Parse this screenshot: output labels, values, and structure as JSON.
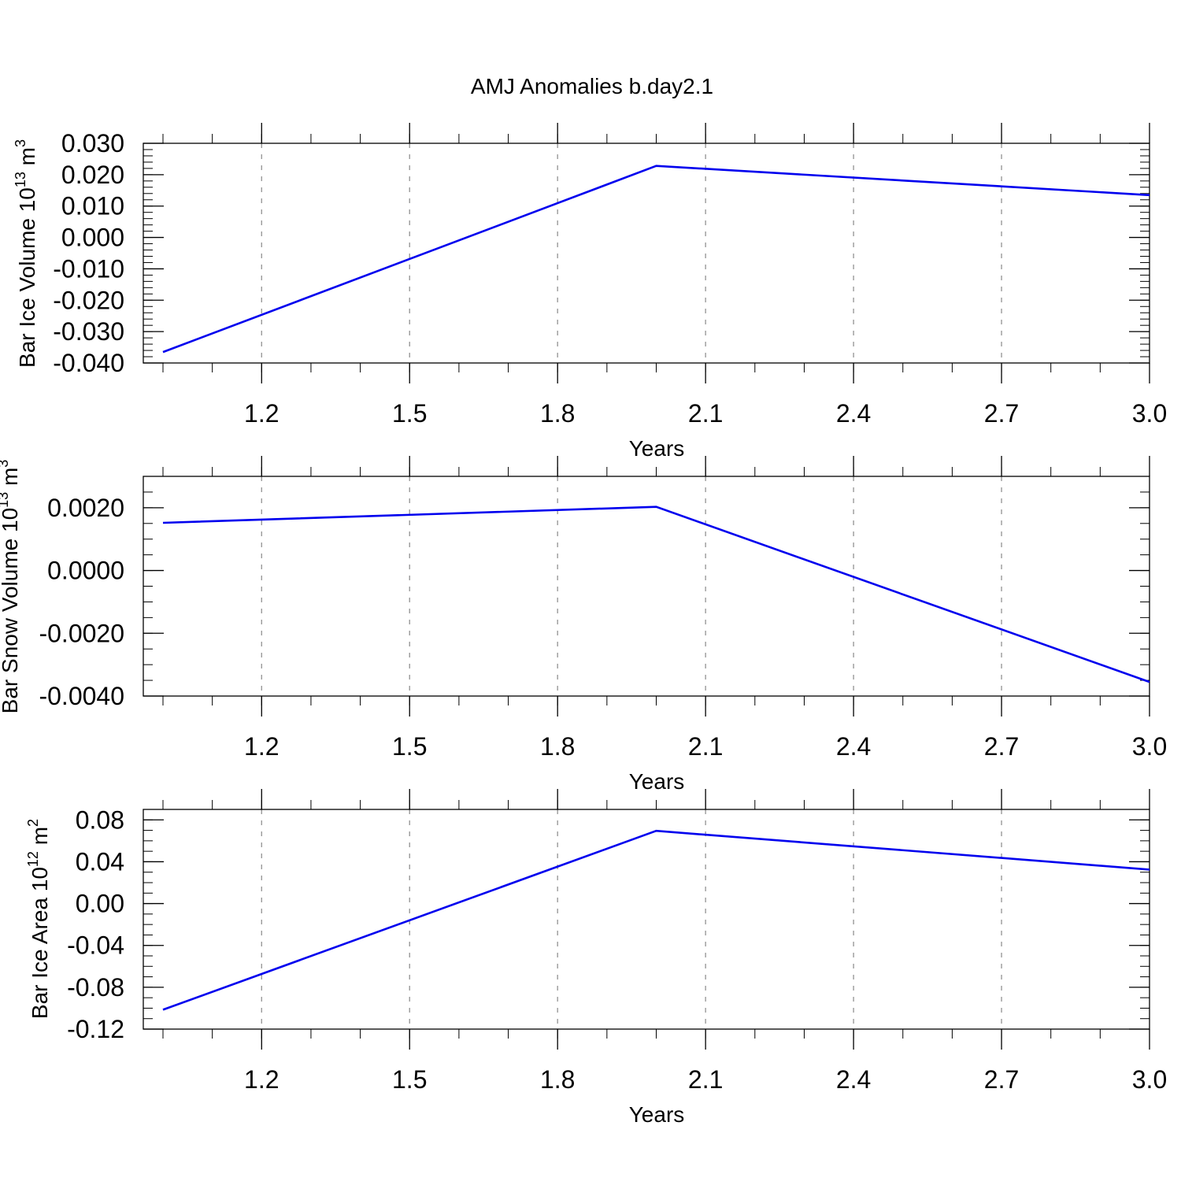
{
  "title": "AMJ Anomalies b.day2.1",
  "colors": {
    "line": "#0000ee",
    "grid": "#9a9a9a",
    "axis": "#000000"
  },
  "chart_data": [
    {
      "type": "line",
      "xlabel": "Years",
      "ylabel": {
        "text": "Bar Ice Volume 10",
        "sup": "13",
        "unit": " m",
        "unit_sup": "3"
      },
      "x": [
        1.0,
        2.0,
        3.0
      ],
      "y": [
        -0.0365,
        0.0228,
        0.0135
      ],
      "xlim": [
        1.0,
        3.0
      ],
      "ylim": [
        -0.04,
        0.03
      ],
      "xticks": [
        1.2,
        1.5,
        1.8,
        2.1,
        2.4,
        2.7,
        3.0
      ],
      "xtick_labels": [
        "1.2",
        "1.5",
        "1.8",
        "2.1",
        "2.4",
        "2.7",
        "3.0"
      ],
      "yticks": [
        0.03,
        0.02,
        0.01,
        0.0,
        -0.01,
        -0.02,
        -0.03,
        -0.04
      ],
      "ytick_labels": [
        "0.030",
        "0.020",
        "0.010",
        "0.000",
        "-0.010",
        "-0.020",
        "-0.030",
        "-0.040"
      ],
      "grid": "vertical dashed"
    },
    {
      "type": "line",
      "xlabel": "Years",
      "ylabel": {
        "text": "Bar Snow Volume 10",
        "sup": "13",
        "unit": " m",
        "unit_sup": "3"
      },
      "x": [
        1.0,
        2.0,
        3.0
      ],
      "y": [
        0.00152,
        0.00203,
        -0.00355
      ],
      "xlim": [
        1.0,
        3.0
      ],
      "ylim": [
        -0.004,
        0.003
      ],
      "xticks": [
        1.2,
        1.5,
        1.8,
        2.1,
        2.4,
        2.7,
        3.0
      ],
      "xtick_labels": [
        "1.2",
        "1.5",
        "1.8",
        "2.1",
        "2.4",
        "2.7",
        "3.0"
      ],
      "yticks": [
        0.002,
        0.0,
        -0.002,
        -0.004
      ],
      "ytick_labels": [
        "0.0020",
        "0.0000",
        "-0.0020",
        "-0.0040"
      ],
      "grid": "vertical dashed"
    },
    {
      "type": "line",
      "xlabel": "Years",
      "ylabel": {
        "text": "Bar Ice Area 10",
        "sup": "12",
        "unit": " m",
        "unit_sup": "2"
      },
      "x": [
        1.0,
        2.0,
        3.0
      ],
      "y": [
        -0.1015,
        0.0695,
        0.0325
      ],
      "xlim": [
        1.0,
        3.0
      ],
      "ylim": [
        -0.12,
        0.09
      ],
      "xticks": [
        1.2,
        1.5,
        1.8,
        2.1,
        2.4,
        2.7,
        3.0
      ],
      "xtick_labels": [
        "1.2",
        "1.5",
        "1.8",
        "2.1",
        "2.4",
        "2.7",
        "3.0"
      ],
      "yticks": [
        0.08,
        0.04,
        0.0,
        -0.04,
        -0.08,
        -0.12
      ],
      "ytick_labels": [
        "0.08",
        "0.04",
        "0.00",
        "-0.04",
        "-0.08",
        "-0.12"
      ],
      "grid": "vertical dashed"
    }
  ]
}
